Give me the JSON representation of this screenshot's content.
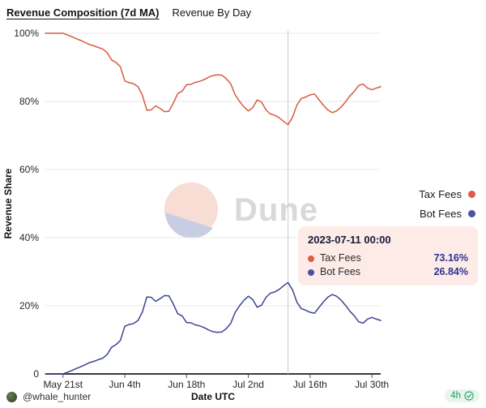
{
  "header": {
    "active_tab": "Revenue Composition (7d MA)",
    "inactive_tab": "Revenue By Day"
  },
  "chart_data": {
    "type": "line",
    "title": "Revenue Composition (7d MA)",
    "xlabel": "Date UTC",
    "ylabel": "Revenue Share",
    "ylim": [
      0,
      100
    ],
    "grid": "horizontal",
    "legend_position": "right",
    "y_ticks": [
      "100%",
      "80%",
      "60%",
      "40%",
      "20%",
      "0"
    ],
    "y_tick_values": [
      100,
      80,
      60,
      40,
      20,
      0
    ],
    "x_tick_labels": [
      "May 21st",
      "Jun 4th",
      "Jun 18th",
      "Jul 2nd",
      "Jul 16th",
      "Jul 30th"
    ],
    "x_tick_indices": [
      4,
      18,
      32,
      46,
      60,
      74
    ],
    "hover_index": 55,
    "hover_date": "2023-07-11 00:00",
    "series": [
      {
        "name": "Tax Fees",
        "color": "#d85b3f",
        "values": [
          100,
          100,
          100,
          100,
          100,
          99.5,
          99.0,
          98.4,
          97.9,
          97.3,
          96.7,
          96.3,
          95.8,
          95.4,
          94.3,
          92.2,
          91.4,
          90.2,
          86.0,
          85.5,
          85.2,
          84.3,
          81.8,
          77.4,
          77.5,
          78.7,
          77.9,
          77.0,
          77.1,
          79.5,
          82.3,
          83.0,
          84.9,
          85.0,
          85.6,
          85.9,
          86.4,
          87.1,
          87.6,
          87.8,
          87.7,
          86.7,
          85.2,
          82.0,
          80.0,
          78.4,
          77.2,
          78.2,
          80.4,
          79.8,
          77.5,
          76.3,
          75.9,
          75.2,
          74.1,
          73.16,
          75.3,
          78.9,
          80.8,
          81.3,
          81.9,
          82.2,
          80.5,
          78.9,
          77.5,
          76.7,
          77.2,
          78.3,
          79.8,
          81.6,
          82.9,
          84.7,
          85.1,
          83.9,
          83.4,
          83.9,
          84.3
        ]
      },
      {
        "name": "Bot Fees",
        "color": "#3d4493",
        "values": [
          0,
          0,
          0,
          0,
          0,
          0.5,
          1.0,
          1.6,
          2.1,
          2.7,
          3.3,
          3.7,
          4.2,
          4.6,
          5.7,
          7.8,
          8.6,
          9.8,
          14.0,
          14.5,
          14.8,
          15.7,
          18.2,
          22.6,
          22.5,
          21.3,
          22.1,
          23.0,
          22.9,
          20.5,
          17.7,
          17.0,
          15.1,
          15.0,
          14.4,
          14.1,
          13.6,
          12.9,
          12.4,
          12.2,
          12.3,
          13.3,
          14.8,
          18.0,
          20.0,
          21.6,
          22.8,
          21.8,
          19.6,
          20.2,
          22.5,
          23.7,
          24.1,
          24.8,
          25.9,
          26.84,
          24.7,
          21.1,
          19.2,
          18.7,
          18.1,
          17.8,
          19.5,
          21.1,
          22.5,
          23.3,
          22.8,
          21.7,
          20.2,
          18.4,
          17.1,
          15.3,
          14.9,
          16.1,
          16.6,
          16.1,
          15.7
        ]
      }
    ]
  },
  "legend": {
    "items": [
      {
        "label": "Tax Fees",
        "color": "#e25b40"
      },
      {
        "label": "Bot Fees",
        "color": "#4a52a3"
      }
    ]
  },
  "tooltip": {
    "title": "2023-07-11 00:00",
    "rows": [
      {
        "label": "Tax Fees",
        "value": "73.16%",
        "color": "#e25b40"
      },
      {
        "label": "Bot Fees",
        "value": "26.84%",
        "color": "#4a52a3"
      }
    ]
  },
  "watermark": {
    "text": "Dune"
  },
  "footer": {
    "handle": "@whale_hunter",
    "badge_text": "4h",
    "badge_icon": "check-circle-icon",
    "badge_color": "#1f9d58"
  }
}
